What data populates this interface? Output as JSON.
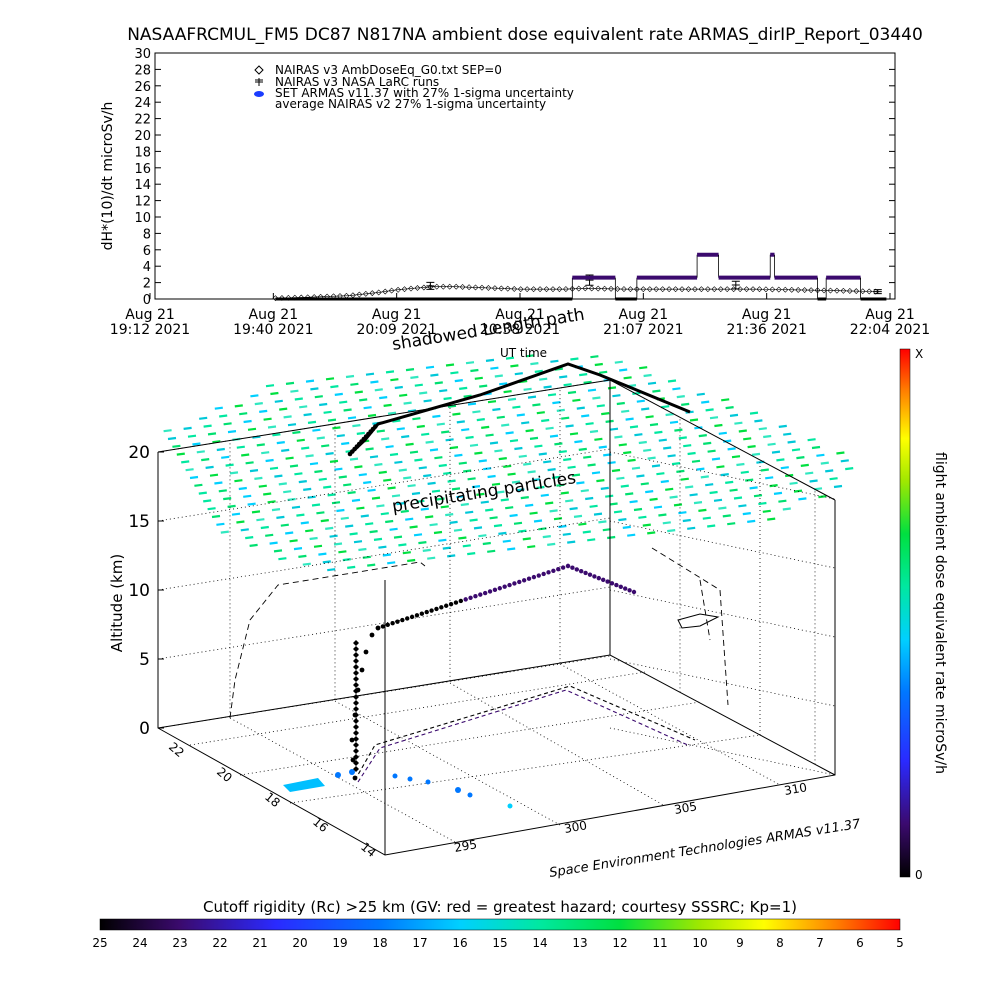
{
  "title": "NASAAFRCMUL_FM5 DC87 N817NA ambient dose equivalent rate ARMAS_dirIP_Report_03440",
  "legend": [
    "NAIRAS v3 AmbDoseEq_G0.txt SEP=0",
    "NAIRAS v3 NASA LaRC runs",
    "SET ARMAS v11.37 with 27% 1-sigma uncertainty",
    "average NAIRAS v2 27% 1-sigma uncertainty"
  ],
  "colors": {
    "armas_marker": "#3b0a6e",
    "legend_blue": "#1a3cff",
    "bg": "#ffffff"
  },
  "chart_data": [
    {
      "type": "line",
      "ylabel": "dH*(10)/dt microSv/h",
      "xlabel": "UT time",
      "ylim": [
        0,
        30
      ],
      "y_ticks": [
        0,
        2,
        4,
        6,
        8,
        10,
        12,
        14,
        16,
        18,
        20,
        22,
        24,
        26,
        28,
        30
      ],
      "x_ticks": [
        {
          "line1": "Aug 21",
          "line2": "19:12 2021"
        },
        {
          "line1": "Aug 21",
          "line2": "19:40 2021"
        },
        {
          "line1": "Aug 21",
          "line2": "20:09 2021"
        },
        {
          "line1": "Aug 21",
          "line2": "20:38 2021"
        },
        {
          "line1": "Aug 21",
          "line2": "21:07 2021"
        },
        {
          "line1": "Aug 21",
          "line2": "21:36 2021"
        },
        {
          "line1": "Aug 21",
          "line2": "22:04 2021"
        }
      ],
      "x_range_minutes": [
        0,
        172
      ],
      "series": [
        {
          "name": "NAIRAS v3 AmbDoseEq_G0.txt SEP=0",
          "x": [
            28,
            35,
            45,
            52,
            56,
            60,
            65,
            70,
            75,
            85,
            95,
            100,
            110,
            125,
            140,
            150,
            160,
            168
          ],
          "y": [
            0.1,
            0.2,
            0.4,
            0.8,
            1.1,
            1.3,
            1.5,
            1.5,
            1.4,
            1.2,
            1.2,
            1.3,
            1.2,
            1.2,
            1.2,
            1.1,
            1.0,
            0.9
          ]
        },
        {
          "name": "NAIRAS v3 NASA LaRC runs",
          "x": [
            64,
            101,
            135,
            168
          ],
          "y": [
            1.6,
            2.3,
            1.7,
            0.9
          ]
        },
        {
          "name": "SET ARMAS v11.37 with 27% 1-sigma uncertainty",
          "segments": [
            {
              "x": [
                28,
                97
              ],
              "y": [
                0,
                0
              ]
            },
            {
              "x": [
                97,
                107
              ],
              "y": [
                2.6,
                2.6
              ]
            },
            {
              "x": [
                107,
                112
              ],
              "y": [
                0,
                0
              ]
            },
            {
              "x": [
                112,
                126
              ],
              "y": [
                2.6,
                2.6
              ]
            },
            {
              "x": [
                126,
                131
              ],
              "y": [
                5.4,
                5.4
              ]
            },
            {
              "x": [
                131,
                143
              ],
              "y": [
                2.6,
                2.6
              ]
            },
            {
              "x": [
                143,
                144
              ],
              "y": [
                5.4,
                5.4
              ]
            },
            {
              "x": [
                144,
                154
              ],
              "y": [
                2.6,
                2.6
              ]
            },
            {
              "x": [
                154,
                156
              ],
              "y": [
                0,
                0
              ]
            },
            {
              "x": [
                156,
                164
              ],
              "y": [
                2.6,
                2.6
              ]
            },
            {
              "x": [
                164,
                170
              ],
              "y": [
                0,
                0
              ]
            }
          ]
        }
      ]
    },
    {
      "type": "scatter",
      "title": "",
      "zlabel": "Altitude (km)",
      "z_ticks": [
        "0",
        "5",
        "10",
        "15",
        "20"
      ],
      "lat_ticks": [
        "22",
        "20",
        "18",
        "16",
        "14"
      ],
      "lon_ticks": [
        "295",
        "300",
        "305",
        "310"
      ],
      "annotations": [
        "shadowed Length path",
        "precipitating particles"
      ],
      "credit": "Space Environment Technologies ARMAS v11.37",
      "flight_path_km": [
        0,
        1,
        3,
        5,
        7,
        7.2,
        7.5,
        8,
        9,
        10,
        11,
        11.2,
        11.3,
        11.4,
        11.5,
        11.6,
        11.6,
        11.5,
        11.4,
        11.3,
        11.2
      ]
    }
  ],
  "right_colorbar": {
    "label": "flight ambient dose equivalent rate microSv/h",
    "max_label": "X",
    "min_label": "0"
  },
  "bottom_colorbar": {
    "label": "Cutoff rigidity (Rc) >25 km (GV: red = greatest hazard; courtesy SSSRC; Kp=1)",
    "ticks": [
      "25",
      "24",
      "23",
      "22",
      "21",
      "20",
      "19",
      "18",
      "17",
      "16",
      "15",
      "14",
      "13",
      "12",
      "11",
      "10",
      "9",
      "8",
      "7",
      "6",
      "5"
    ]
  }
}
